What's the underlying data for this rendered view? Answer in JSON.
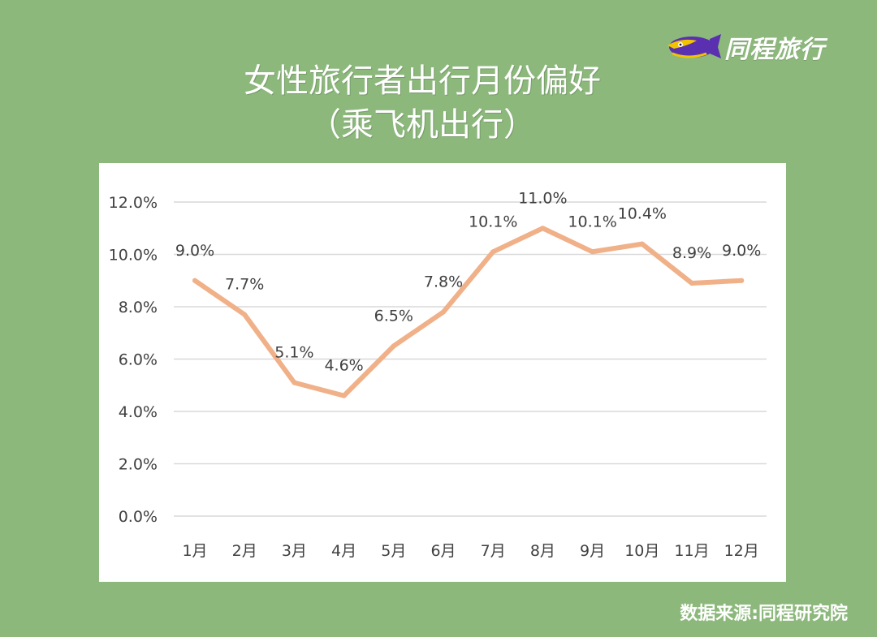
{
  "brand": {
    "name": "同程旅行",
    "accent": "#5a2fb0"
  },
  "header": {
    "title_line1": "女性旅行者出行月份偏好",
    "title_line2": "（乘飞机出行）"
  },
  "footer": {
    "source": "数据来源:同程研究院"
  },
  "colors": {
    "background": "#8cb87c",
    "line": "#f0b088",
    "grid": "#d9d9d9",
    "text": "#404040"
  },
  "chart_data": {
    "type": "line",
    "title": "女性旅行者出行月份偏好（乘飞机出行）",
    "categories": [
      "1月",
      "2月",
      "3月",
      "4月",
      "5月",
      "6月",
      "7月",
      "8月",
      "9月",
      "10月",
      "11月",
      "12月"
    ],
    "values": [
      9.0,
      7.7,
      5.1,
      4.6,
      6.5,
      7.8,
      10.1,
      11.0,
      10.1,
      10.4,
      8.9,
      9.0
    ],
    "data_labels": [
      "9.0%",
      "7.7%",
      "5.1%",
      "4.6%",
      "6.5%",
      "7.8%",
      "10.1%",
      "11.0%",
      "10.1%",
      "10.4%",
      "8.9%",
      "9.0%"
    ],
    "y_ticks": [
      0,
      2,
      4,
      6,
      8,
      10,
      12
    ],
    "y_tick_labels": [
      "0.0%",
      "2.0%",
      "4.0%",
      "6.0%",
      "8.0%",
      "10.0%",
      "12.0%"
    ],
    "ylim": [
      0,
      12
    ],
    "xlabel": "",
    "ylabel": "",
    "grid": true,
    "legend": "none"
  }
}
